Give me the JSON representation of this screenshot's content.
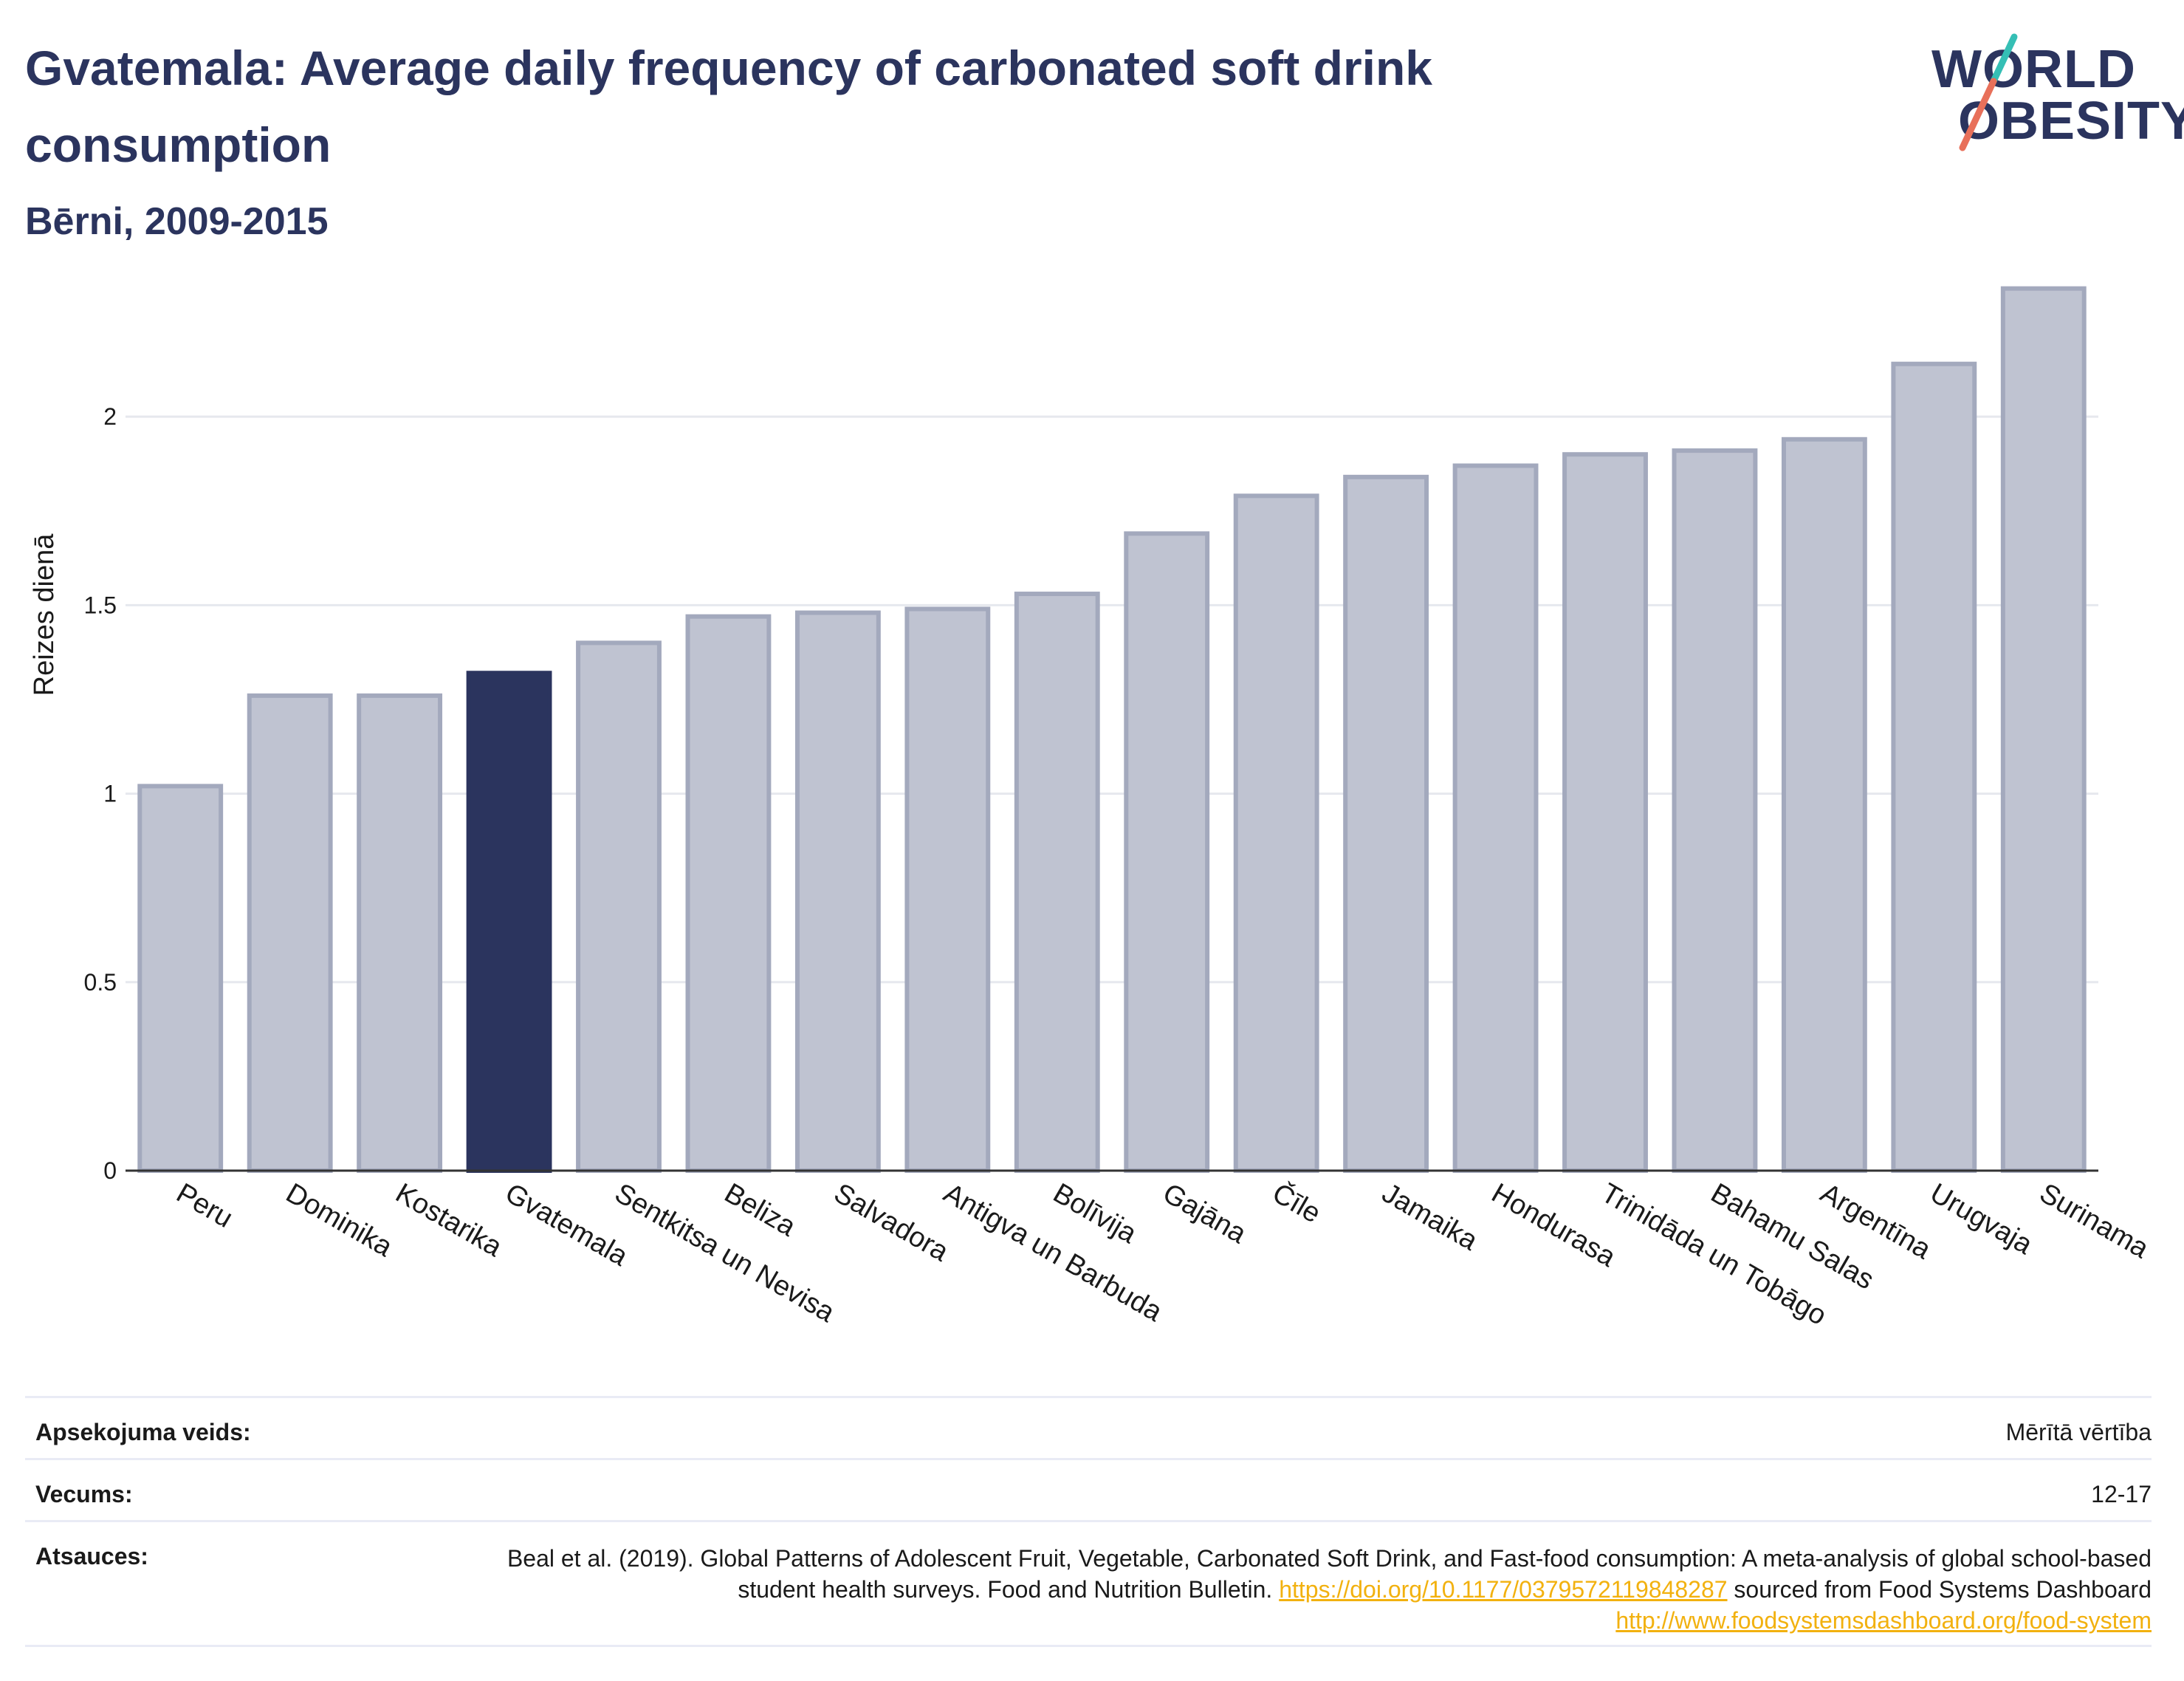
{
  "header": {
    "title": "Gvatemala: Average daily frequency of carbonated soft drink consumption",
    "subtitle": "Bērni, 2009-2015"
  },
  "logo": {
    "line1": "WORLD",
    "line2": "OBESITY",
    "slash_colors": [
      "#35bfb5",
      "#e8705a"
    ]
  },
  "colors": {
    "highlight": "#2b345e",
    "bar_fill": "#bfc3d1",
    "bar_stroke": "#a3a9bd",
    "grid": "#e6e8ee",
    "link": "#f2b10f"
  },
  "chart_data": {
    "type": "bar",
    "ylabel": "Reizes dienā",
    "ylim": [
      0,
      2.4
    ],
    "yticks": [
      0,
      0.5,
      1,
      1.5,
      2
    ],
    "ytick_labels": [
      "0",
      "0.5",
      "1",
      "1.5",
      "2"
    ],
    "grid": true,
    "highlight": "Gvatemala",
    "categories": [
      "Peru",
      "Dominika",
      "Kostarika",
      "Gvatemala",
      "Sentkitsa un Nevisa",
      "Beliza",
      "Salvadora",
      "Antigva un Barbuda",
      "Bolīvija",
      "Gajāna",
      "Čīle",
      "Jamaika",
      "Hondurasa",
      "Trinidāda un Tobāgo",
      "Bahamu Salas",
      "Argentīna",
      "Urugvaja",
      "Surinama"
    ],
    "values": [
      1.02,
      1.26,
      1.26,
      1.32,
      1.4,
      1.47,
      1.48,
      1.49,
      1.53,
      1.69,
      1.79,
      1.84,
      1.87,
      1.9,
      1.91,
      1.94,
      2.14,
      2.34
    ]
  },
  "meta": {
    "survey_type_label": "Apsekojuma veids:",
    "survey_type_value": "Mērītā vērtība",
    "age_label": "Vecums:",
    "age_value": "12-17",
    "sources_label": "Atsauces:",
    "sources_text_1": "Beal et al. (2019). Global Patterns of Adolescent Fruit, Vegetable, Carbonated Soft Drink, and Fast-food consumption: A meta-analysis of global school-based student health surveys. Food and Nutrition Bulletin.",
    "sources_link_1": "https://doi.org/10.1177/0379572119848287",
    "sources_text_2": "sourced from Food Systems Dashboard",
    "sources_link_2": "http://www.foodsystemsdashboard.org/food-system"
  }
}
